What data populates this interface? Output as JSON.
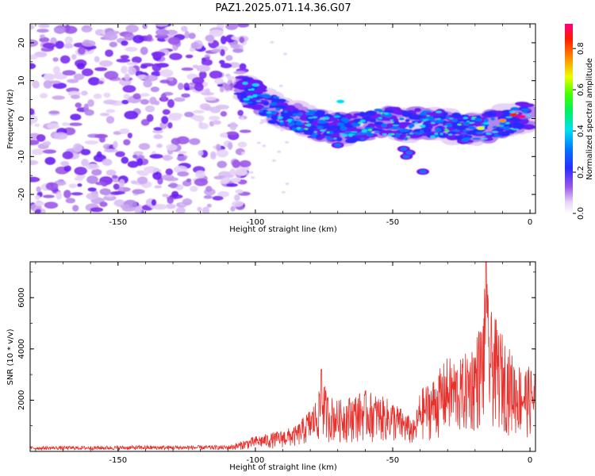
{
  "chart_data": [
    {
      "type": "heatmap",
      "title": "PAZ1.2025.071.14.36.G07",
      "xlabel": "Height of straight line (km)",
      "ylabel": "Frequency (Hz)",
      "xlim": [
        -182,
        2
      ],
      "ylim": [
        -25,
        25
      ],
      "xticks": [
        -150,
        -100,
        -50,
        0
      ],
      "yticks": [
        -20,
        -10,
        0,
        10,
        20
      ],
      "colorbar": {
        "label": "Normalized spectral amplitude",
        "range": [
          0,
          0.92
        ],
        "ticks": [
          0.0,
          0.2,
          0.4,
          0.6,
          0.8
        ],
        "colormap": "rainbow (violet → blue → cyan → green → yellow → red → magenta)"
      },
      "noise_region_x": [
        -182,
        -105
      ],
      "signal_ridge": {
        "x": [
          -106,
          -100,
          -95,
          -90,
          -85,
          -80,
          -75,
          -70,
          -65,
          -60,
          -55,
          -50,
          -45,
          -40,
          -35,
          -30,
          -25,
          -20,
          -15,
          -10,
          -5,
          0
        ],
        "freq": [
          8,
          6,
          3,
          1.5,
          0,
          -1,
          -2,
          -2.5,
          -2.5,
          -2,
          -1,
          -1,
          -2,
          -1,
          -1.5,
          -2,
          -2.5,
          -3,
          -2,
          -1,
          0.5,
          1
        ]
      }
    },
    {
      "type": "line",
      "xlabel": "Height of straight line (km)",
      "ylabel": "SNR (10 * v/v)",
      "xlim": [
        -182,
        2
      ],
      "ylim": [
        0,
        7400
      ],
      "xticks": [
        -150,
        -100,
        -50,
        0
      ],
      "yticks": [
        2000,
        4000,
        6000
      ],
      "color": "#e8302c",
      "envelope": {
        "x": [
          -182,
          -140,
          -110,
          -105,
          -100,
          -95,
          -90,
          -85,
          -80,
          -77,
          -76,
          -74,
          -70,
          -65,
          -60,
          -55,
          -50,
          -45,
          -42,
          -40,
          -35,
          -30,
          -25,
          -20,
          -17,
          -16,
          -15,
          -13,
          -10,
          -5,
          0,
          2
        ],
        "max": [
          200,
          230,
          240,
          400,
          600,
          700,
          850,
          1000,
          1700,
          2200,
          3200,
          2300,
          2000,
          2200,
          2400,
          2200,
          2000,
          1500,
          1200,
          2400,
          2900,
          3700,
          3600,
          4400,
          5500,
          7400,
          5600,
          5300,
          4600,
          3500,
          3300,
          3300
        ]
      }
    }
  ]
}
